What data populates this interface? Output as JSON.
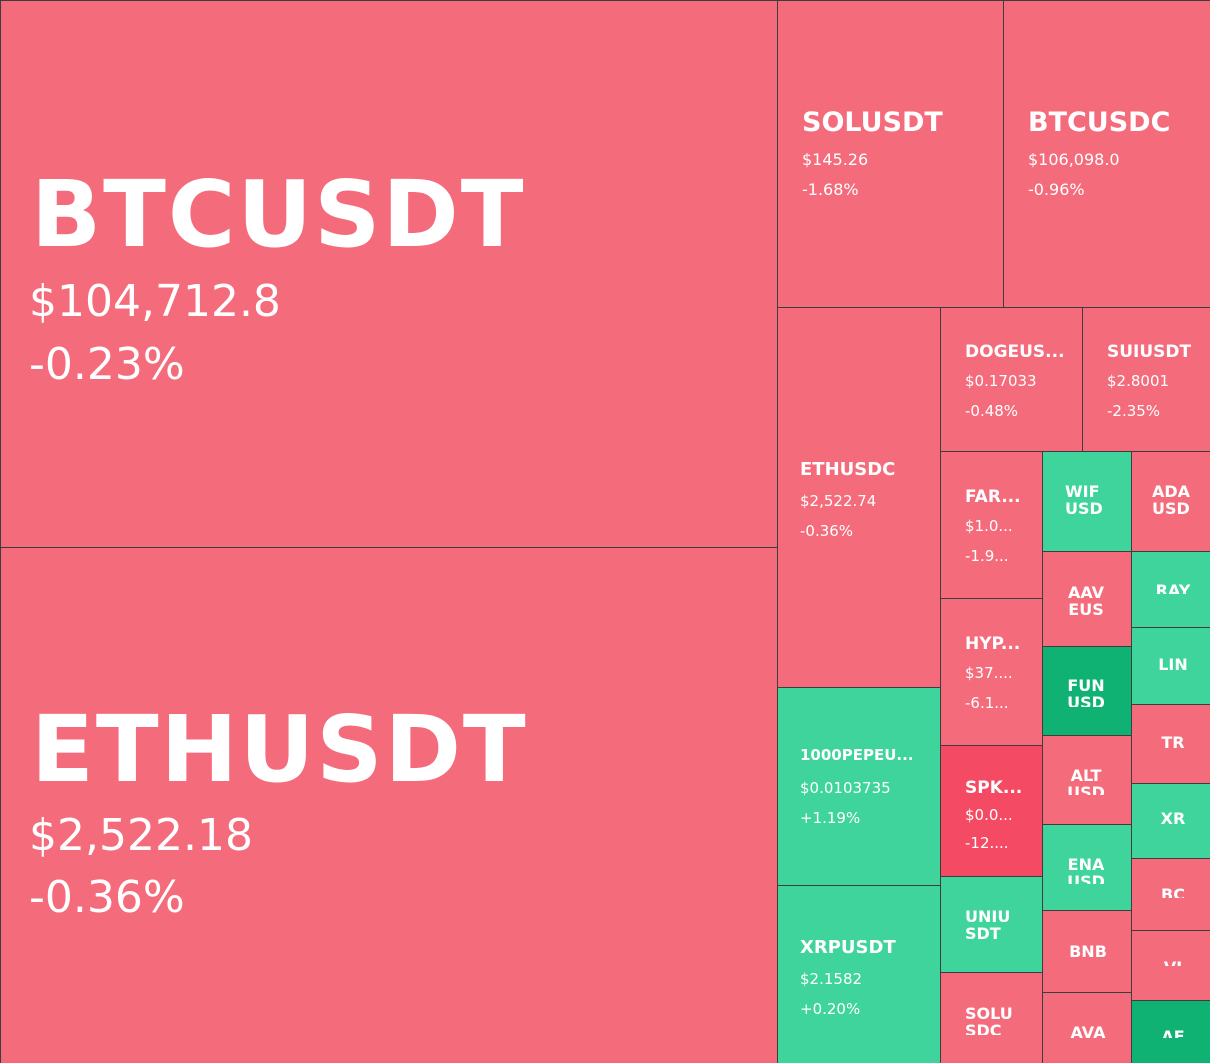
{
  "tiles": {
    "btcusdt": {
      "symbol": "BTCUSDT",
      "price": "$104,712.8",
      "change": "-0.23%",
      "color": "#f46b7b"
    },
    "ethusdt": {
      "symbol": "ETHUSDT",
      "price": "$2,522.18",
      "change": "-0.36%",
      "color": "#f46b7b"
    },
    "solusdt": {
      "symbol": "SOLUSDT",
      "price": "$145.26",
      "change": "-1.68%",
      "color": "#f46b7b"
    },
    "btcusdc": {
      "symbol": "BTCUSDC",
      "price": "$106,098.0",
      "change": "-0.96%",
      "color": "#f46b7b"
    },
    "ethusdc": {
      "symbol": "ETHUSDC",
      "price": "$2,522.74",
      "change": "-0.36%",
      "color": "#f46b7b"
    },
    "dogeusdt": {
      "symbol": "DOGEUS...",
      "price": "$0.17033",
      "change": "-0.48%",
      "color": "#f46b7b"
    },
    "suiusdt": {
      "symbol": "SUIUSDT",
      "price": "$2.8001",
      "change": "-2.35%",
      "color": "#f46b7b"
    },
    "pepe": {
      "symbol": "1000PEPEU...",
      "price": "$0.0103735",
      "change": "+1.19%",
      "color": "#3fd49b"
    },
    "xrpusdt": {
      "symbol": "XRPUSDT",
      "price": "$2.1582",
      "change": "+0.20%",
      "color": "#3fd49b"
    },
    "far": {
      "symbol": "FAR...",
      "price": "$1.0...",
      "change": "-1.9...",
      "color": "#f46b7b"
    },
    "hyp": {
      "symbol": "HYP...",
      "price": "$37....",
      "change": "-6.1...",
      "color": "#f46b7b"
    },
    "spk": {
      "symbol": "SPK...",
      "price": "$0.0...",
      "change": "-12....",
      "color": "#f44a63"
    },
    "uniusdt": {
      "symbol": "UNIUSDT",
      "color": "#3fd49b"
    },
    "solusdc": {
      "symbol": "SOLUSDC",
      "color": "#f46b7b"
    },
    "wifusd": {
      "symbol": "WIFUSD",
      "color": "#3fd49b"
    },
    "aave": {
      "symbol": "AAVEUS",
      "color": "#f46b7b"
    },
    "fun": {
      "symbol": "FUNUSD",
      "color": "#0fb273"
    },
    "alt": {
      "symbol": "ALTUSD",
      "color": "#f46b7b"
    },
    "ena": {
      "symbol": "ENAUSD",
      "color": "#3fd49b"
    },
    "bnb": {
      "symbol": "BNB",
      "color": "#f46b7b"
    },
    "ava": {
      "symbol": "AVA",
      "color": "#f46b7b"
    },
    "ada": {
      "symbol": "ADAUSD",
      "color": "#f46b7b"
    },
    "ray": {
      "symbol": "RAY",
      "color": "#3fd49b"
    },
    "lin": {
      "symbol": "LIN",
      "color": "#3fd49b"
    },
    "tr": {
      "symbol": "TR",
      "color": "#f46b7b"
    },
    "xr": {
      "symbol": "XR",
      "color": "#3fd49b"
    },
    "bc": {
      "symbol": "BC",
      "color": "#f46b7b"
    },
    "vi": {
      "symbol": "VI",
      "color": "#f46b7b"
    },
    "ae": {
      "symbol": "AE",
      "color": "#0fb273"
    }
  }
}
